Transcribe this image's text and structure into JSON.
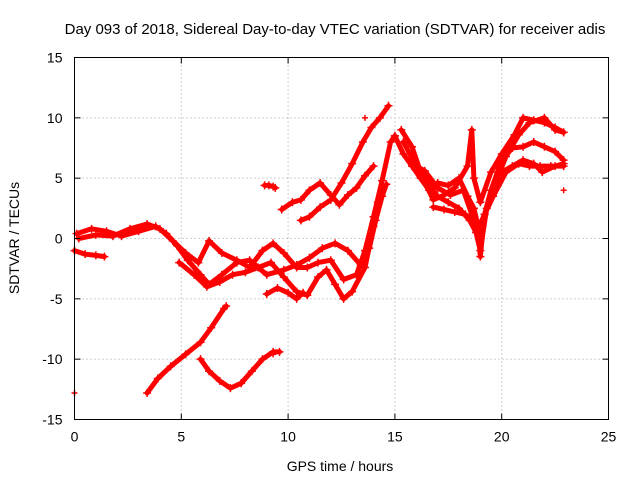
{
  "chart_data": {
    "type": "scatter",
    "title": "Day 093 of 2018, Sidereal Day-to-day VTEC variation (SDTVAR) for receiver adis",
    "xlabel": "GPS time / hours",
    "ylabel": "SDTVAR / TECUs",
    "xlim": [
      0,
      25
    ],
    "ylim": [
      -15,
      15
    ],
    "xticks": [
      0,
      5,
      10,
      15,
      20,
      25
    ],
    "yticks": [
      -15,
      -10,
      -5,
      0,
      5,
      10,
      15
    ],
    "grid": true,
    "marker": "+",
    "color": "#ff0000",
    "series": [
      {
        "name": "s1",
        "points": [
          [
            0.1,
            0.4
          ],
          [
            0.8,
            0.8
          ],
          [
            1.5,
            0.6
          ],
          [
            2.2,
            0.2
          ],
          [
            3.0,
            0.6
          ],
          [
            3.8,
            1.0
          ],
          [
            4.3,
            0.4
          ],
          [
            4.8,
            -0.6
          ],
          [
            5.3,
            -1.8
          ],
          [
            5.9,
            -3.0
          ],
          [
            6.3,
            -3.8
          ],
          [
            6.9,
            -3.0
          ],
          [
            7.6,
            -2.0
          ],
          [
            8.2,
            -1.8
          ],
          [
            9.0,
            -3.0
          ],
          [
            9.8,
            -2.6
          ],
          [
            10.4,
            -2.2
          ],
          [
            11.0,
            -1.6
          ],
          [
            11.6,
            -0.8
          ],
          [
            12.2,
            -0.4
          ],
          [
            12.8,
            -1.0
          ],
          [
            13.4,
            -2.2
          ],
          [
            13.8,
            -0.8
          ],
          [
            14.1,
            1.5
          ],
          [
            14.4,
            3.5
          ],
          [
            14.6,
            4.5
          ]
        ]
      },
      {
        "name": "s2",
        "points": [
          [
            0.2,
            0.0
          ],
          [
            1.0,
            0.3
          ],
          [
            1.8,
            0.2
          ],
          [
            2.6,
            0.8
          ],
          [
            3.4,
            1.2
          ],
          [
            4.0,
            0.8
          ],
          [
            4.6,
            -0.2
          ],
          [
            5.2,
            -1.2
          ],
          [
            5.8,
            -2.0
          ],
          [
            6.3,
            -0.2
          ],
          [
            6.9,
            -1.2
          ],
          [
            7.6,
            -1.8
          ],
          [
            8.2,
            -2.4
          ],
          [
            8.8,
            -1.0
          ],
          [
            9.3,
            -0.4
          ],
          [
            9.8,
            -1.2
          ],
          [
            10.4,
            -2.4
          ],
          [
            10.9,
            -2.4
          ],
          [
            11.4,
            -2.0
          ],
          [
            12.0,
            -1.8
          ],
          [
            12.6,
            -3.4
          ],
          [
            13.2,
            -3.0
          ],
          [
            13.6,
            -1.0
          ],
          [
            14.0,
            1.8
          ],
          [
            14.4,
            4.8
          ],
          [
            14.8,
            8.0
          ],
          [
            15.0,
            8.5
          ]
        ]
      },
      {
        "name": "s3",
        "points": [
          [
            0.0,
            -1.0
          ],
          [
            0.5,
            -1.3
          ],
          [
            1.0,
            -1.4
          ],
          [
            1.4,
            -1.5
          ]
        ]
      },
      {
        "name": "s4",
        "points": [
          [
            4.9,
            -2.0
          ],
          [
            5.6,
            -3.0
          ],
          [
            6.2,
            -4.0
          ],
          [
            6.8,
            -3.6
          ],
          [
            7.4,
            -3.0
          ],
          [
            8.0,
            -2.8
          ],
          [
            8.6,
            -2.4
          ],
          [
            9.2,
            -2.0
          ],
          [
            9.8,
            -3.2
          ],
          [
            10.4,
            -4.4
          ],
          [
            10.9,
            -4.7
          ],
          [
            11.4,
            -3.2
          ],
          [
            11.8,
            -2.6
          ],
          [
            12.2,
            -3.8
          ],
          [
            12.6,
            -5.0
          ],
          [
            13.0,
            -4.4
          ],
          [
            13.6,
            -2.4
          ],
          [
            14.0,
            1.0
          ],
          [
            14.2,
            3.0
          ]
        ]
      },
      {
        "name": "s5",
        "points": [
          [
            9.0,
            -4.6
          ],
          [
            9.5,
            -4.1
          ],
          [
            10.0,
            -4.5
          ],
          [
            10.4,
            -5.0
          ],
          [
            10.7,
            -4.5
          ]
        ]
      },
      {
        "name": "s6",
        "points": [
          [
            9.7,
            2.4
          ],
          [
            10.2,
            3.0
          ],
          [
            10.6,
            3.2
          ],
          [
            11.0,
            4.0
          ],
          [
            11.5,
            4.6
          ],
          [
            12.0,
            3.6
          ],
          [
            12.4,
            2.8
          ],
          [
            12.8,
            3.6
          ],
          [
            13.2,
            4.2
          ],
          [
            13.6,
            5.2
          ],
          [
            14.0,
            6.0
          ]
        ]
      },
      {
        "name": "s7",
        "points": [
          [
            10.6,
            1.5
          ],
          [
            11.0,
            1.8
          ],
          [
            11.5,
            2.6
          ],
          [
            12.0,
            3.2
          ],
          [
            12.5,
            4.6
          ],
          [
            13.0,
            6.2
          ],
          [
            13.5,
            8.0
          ],
          [
            13.9,
            9.2
          ],
          [
            14.3,
            10.0
          ],
          [
            14.7,
            11.0
          ]
        ]
      },
      {
        "name": "s8",
        "points": [
          [
            8.9,
            4.4
          ],
          [
            9.1,
            4.4
          ],
          [
            9.3,
            4.3
          ],
          [
            9.4,
            4.2
          ]
        ]
      },
      {
        "name": "s9",
        "points": [
          [
            3.4,
            -12.8
          ],
          [
            3.9,
            -11.6
          ],
          [
            4.5,
            -10.6
          ],
          [
            5.2,
            -9.6
          ],
          [
            5.9,
            -8.6
          ],
          [
            6.4,
            -7.4
          ],
          [
            7.0,
            -5.8
          ],
          [
            7.1,
            -5.6
          ]
        ]
      },
      {
        "name": "s10",
        "points": [
          [
            5.9,
            -10.0
          ],
          [
            6.3,
            -11.0
          ],
          [
            6.8,
            -11.8
          ],
          [
            7.3,
            -12.4
          ],
          [
            7.8,
            -12.0
          ],
          [
            8.3,
            -11.0
          ],
          [
            8.8,
            -10.0
          ],
          [
            9.3,
            -9.4
          ],
          [
            9.6,
            -9.4
          ]
        ]
      },
      {
        "name": "s11",
        "points": [
          [
            15.0,
            8.5
          ],
          [
            15.4,
            7.0
          ],
          [
            15.8,
            6.0
          ],
          [
            16.2,
            5.0
          ],
          [
            16.6,
            4.0
          ],
          [
            17.0,
            4.6
          ],
          [
            17.5,
            4.4
          ],
          [
            18.0,
            5.0
          ],
          [
            18.4,
            3.5
          ],
          [
            18.7,
            2.5
          ],
          [
            18.9,
            1.0
          ],
          [
            19.0,
            -1.5
          ],
          [
            19.2,
            2.0
          ],
          [
            19.5,
            4.0
          ],
          [
            20.0,
            6.5
          ],
          [
            20.5,
            7.5
          ],
          [
            21.0,
            7.6
          ],
          [
            21.5,
            8.0
          ],
          [
            22.0,
            7.6
          ],
          [
            22.5,
            7.2
          ],
          [
            22.9,
            6.5
          ]
        ]
      },
      {
        "name": "s12",
        "points": [
          [
            15.3,
            9.0
          ],
          [
            15.8,
            7.6
          ],
          [
            16.3,
            5.0
          ],
          [
            16.8,
            3.2
          ],
          [
            17.3,
            3.6
          ],
          [
            17.8,
            4.2
          ],
          [
            18.4,
            6.0
          ],
          [
            18.6,
            9.0
          ],
          [
            18.7,
            5.0
          ],
          [
            19.0,
            3.0
          ],
          [
            19.5,
            5.5
          ],
          [
            20.0,
            7.0
          ],
          [
            20.6,
            8.6
          ],
          [
            21.0,
            10.0
          ],
          [
            21.5,
            9.8
          ],
          [
            22.0,
            9.6
          ],
          [
            22.5,
            9.2
          ],
          [
            22.9,
            8.8
          ]
        ]
      },
      {
        "name": "s13",
        "points": [
          [
            15.4,
            8.0
          ],
          [
            16.0,
            6.0
          ],
          [
            16.4,
            5.6
          ],
          [
            17.0,
            4.2
          ],
          [
            17.6,
            3.6
          ],
          [
            18.2,
            4.0
          ],
          [
            18.6,
            2.0
          ],
          [
            19.0,
            -1.0
          ],
          [
            19.3,
            2.5
          ],
          [
            19.8,
            5.0
          ],
          [
            20.2,
            6.8
          ],
          [
            20.8,
            8.6
          ],
          [
            21.3,
            9.6
          ],
          [
            22.0,
            10.0
          ],
          [
            22.5,
            9.0
          ],
          [
            22.9,
            8.8
          ]
        ]
      },
      {
        "name": "s14",
        "points": [
          [
            16.0,
            6.0
          ],
          [
            16.6,
            4.5
          ],
          [
            17.0,
            3.5
          ],
          [
            17.5,
            3.0
          ],
          [
            18.0,
            2.5
          ],
          [
            18.5,
            1.5
          ],
          [
            18.8,
            0.5
          ],
          [
            19.2,
            2.0
          ],
          [
            19.6,
            3.5
          ],
          [
            20.2,
            5.5
          ],
          [
            20.8,
            6.2
          ],
          [
            21.3,
            6.0
          ],
          [
            21.8,
            6.0
          ],
          [
            22.3,
            6.0
          ],
          [
            22.9,
            6.0
          ]
        ]
      },
      {
        "name": "s15",
        "points": [
          [
            20.0,
            5.5
          ],
          [
            20.5,
            6.0
          ],
          [
            21.0,
            6.5
          ],
          [
            21.5,
            6.2
          ],
          [
            21.9,
            5.5
          ],
          [
            22.5,
            6.0
          ],
          [
            22.9,
            6.2
          ]
        ]
      },
      {
        "name": "s16",
        "points": [
          [
            16.8,
            2.6
          ],
          [
            17.3,
            2.4
          ],
          [
            17.8,
            2.2
          ],
          [
            18.3,
            2.0
          ],
          [
            18.6,
            1.5
          ],
          [
            19.0,
            0.5
          ]
        ]
      }
    ],
    "isolated_points": [
      [
        0.0,
        -12.8
      ],
      [
        22.9,
        4.0
      ],
      [
        13.6,
        10.0
      ],
      [
        9.3,
        -9.6
      ]
    ]
  }
}
